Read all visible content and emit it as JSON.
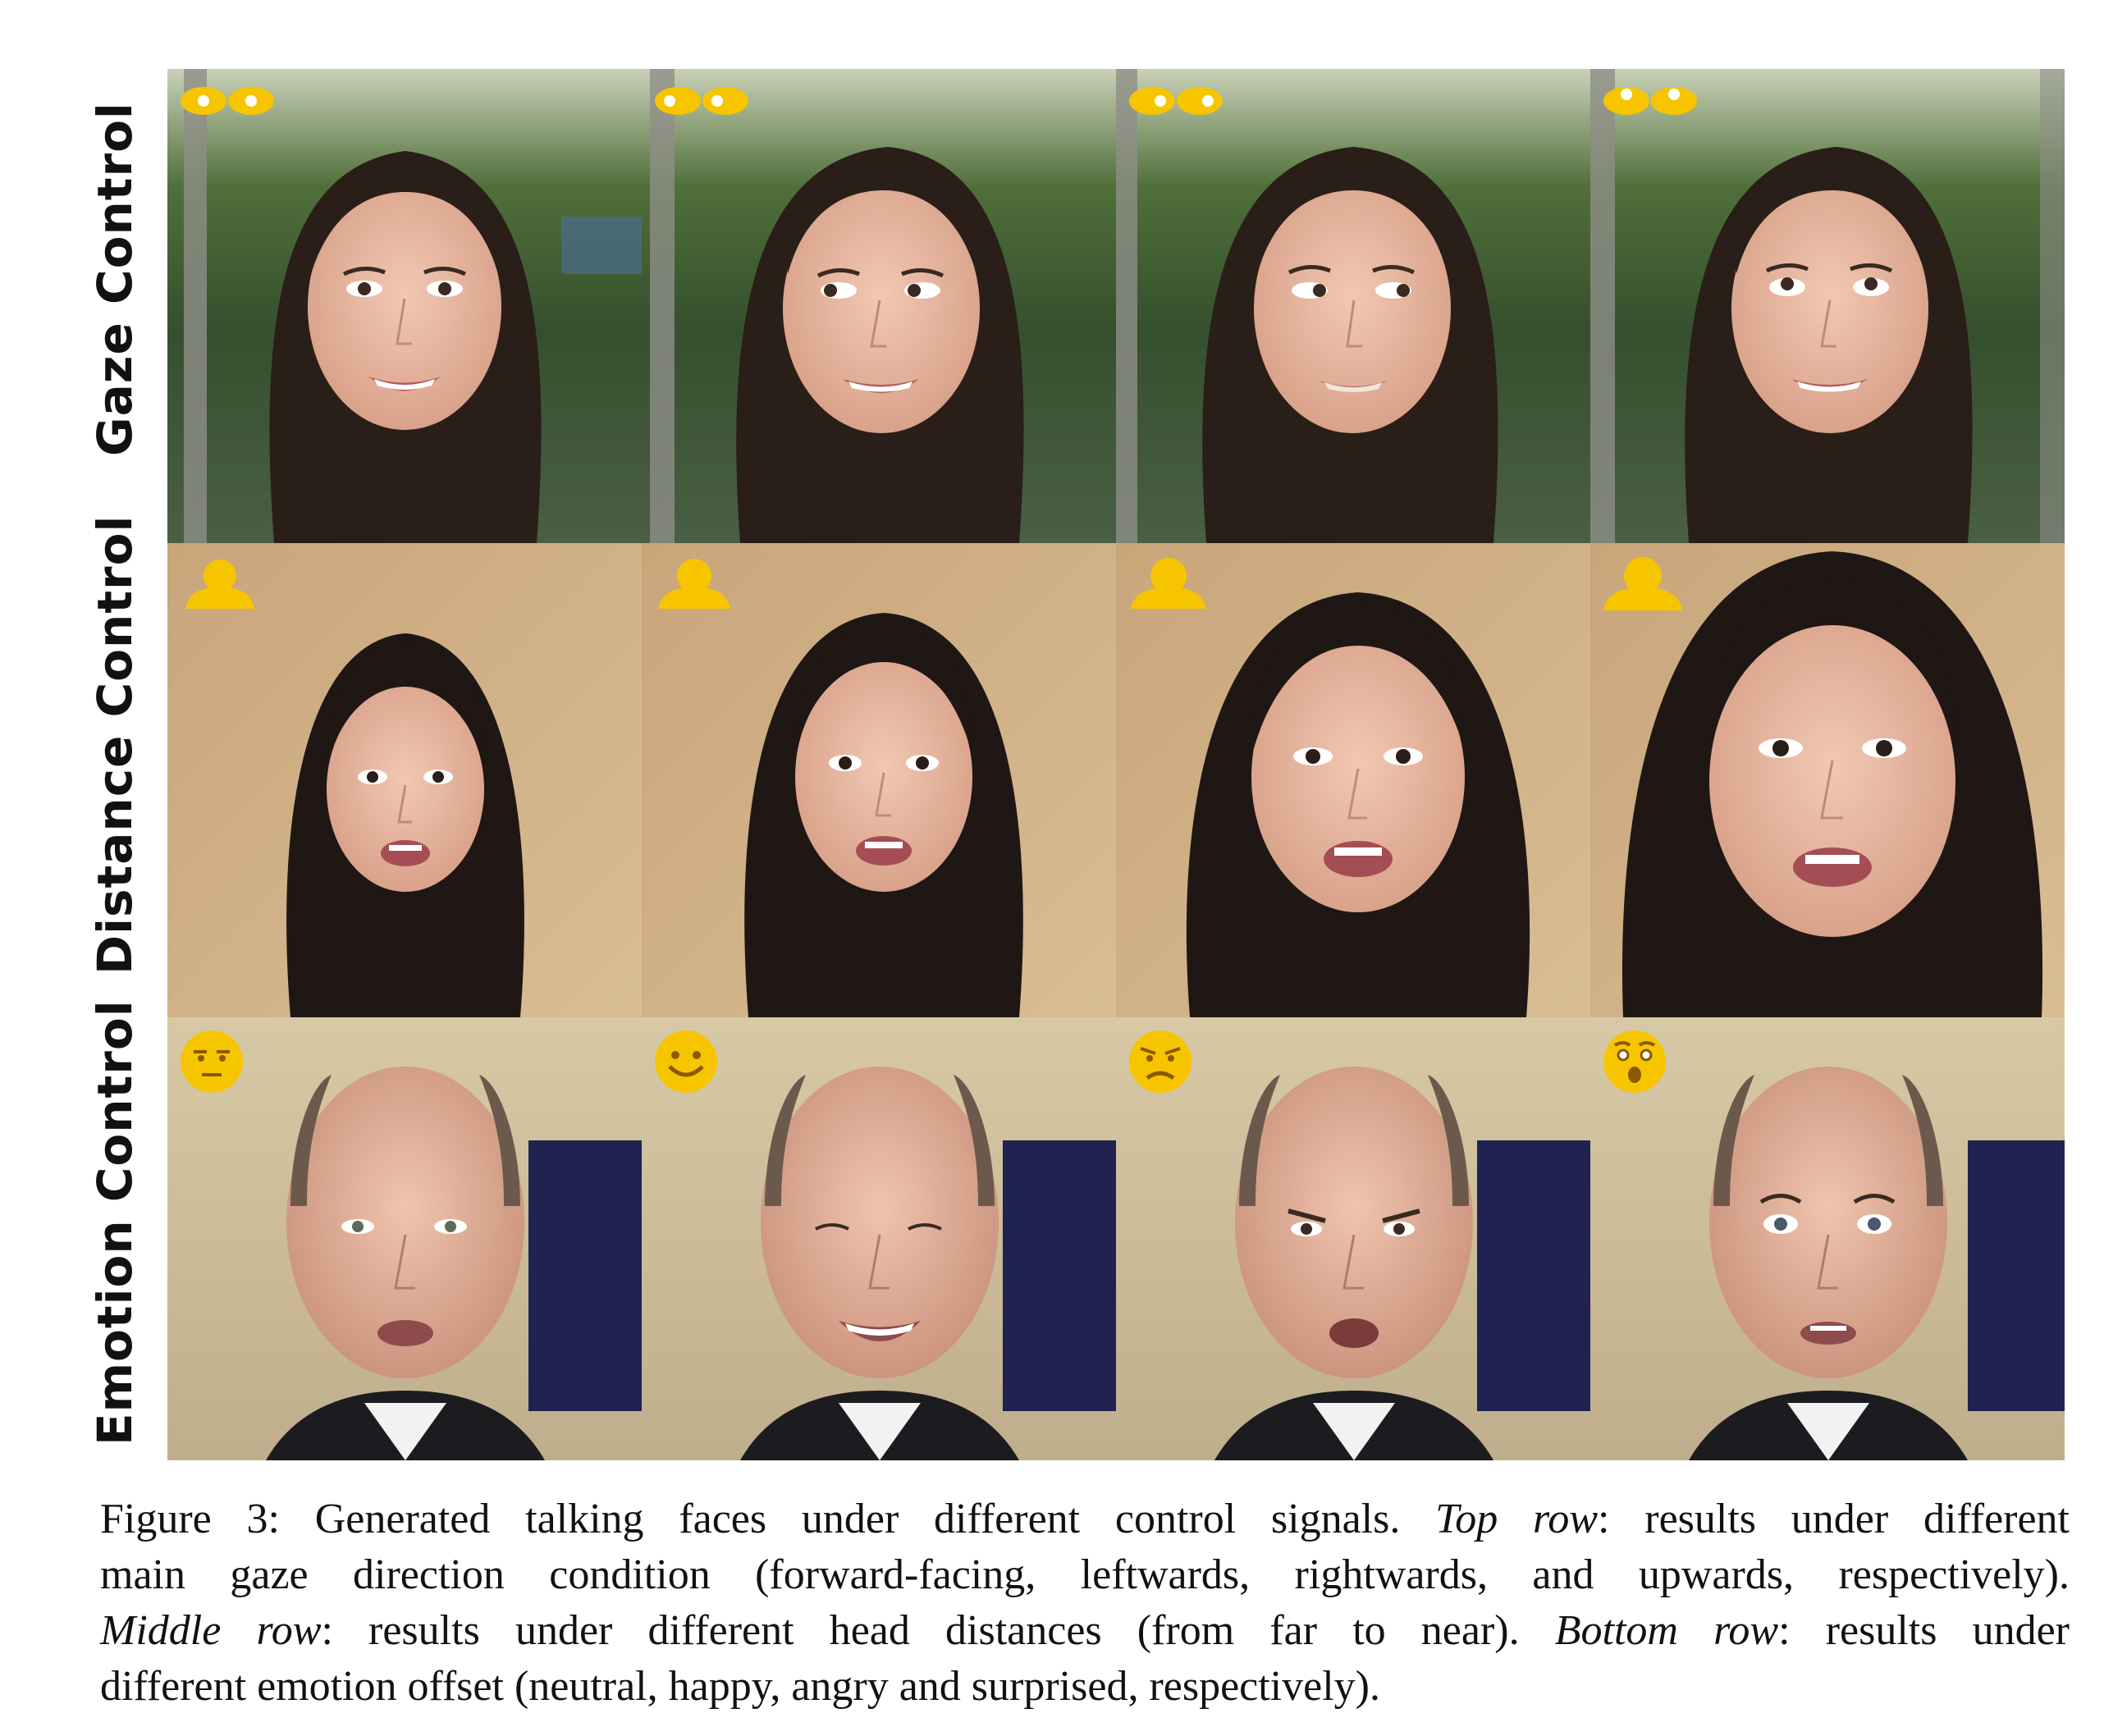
{
  "figure": {
    "rows": [
      {
        "label": "Gaze Control",
        "icon": "gaze-eyes-icon",
        "background": "garden",
        "subject": "woman",
        "panels": [
          {
            "condition_icon": "eyes-forward-icon"
          },
          {
            "condition_icon": "eyes-left-icon"
          },
          {
            "condition_icon": "eyes-right-icon"
          },
          {
            "condition_icon": "eyes-up-icon"
          }
        ]
      },
      {
        "label": "Distance Control",
        "icon": "head-distance-icon",
        "background": "beige-wall",
        "subject": "woman",
        "panels": [
          {
            "condition_icon": "person-far-icon"
          },
          {
            "condition_icon": "person-medium-far-icon"
          },
          {
            "condition_icon": "person-medium-near-icon"
          },
          {
            "condition_icon": "person-near-icon"
          }
        ]
      },
      {
        "label": "Emotion Control",
        "icon": "emotion-face-icon",
        "background": "office",
        "subject": "man",
        "panels": [
          {
            "condition_icon": "neutral-face-icon"
          },
          {
            "condition_icon": "happy-face-icon"
          },
          {
            "condition_icon": "angry-face-icon"
          },
          {
            "condition_icon": "surprised-face-icon"
          }
        ]
      }
    ],
    "icon_color": "#F7C500"
  },
  "caption": {
    "line1_a": "Figure 3: Generated talking faces under different control signals. ",
    "line1_em": "Top row",
    "line1_b": ": results under different",
    "line2": "main gaze direction condition (forward-facing, leftwards, rightwards, and upwards, respectively).",
    "line3_em1": "Middle row",
    "line3_a": ": results under different head distances (from far to near). ",
    "line3_em2": "Bottom row",
    "line3_b": ": results under",
    "line4": "different emotion offset (neutral, happy, angry and surprised, respectively)."
  }
}
